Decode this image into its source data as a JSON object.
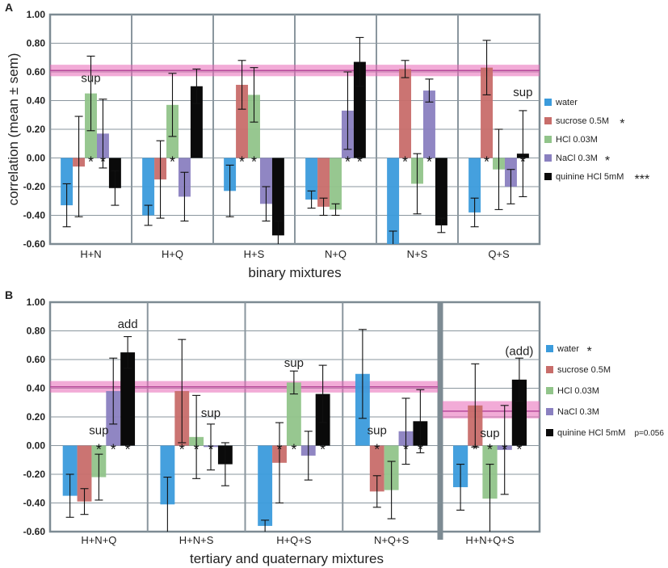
{
  "colors": {
    "water": "#3b9bdc",
    "sucrose": "#c86d6a",
    "hcl": "#91c48a",
    "nacl": "#8a80c0",
    "quinine": "#0a0a0a",
    "band": "#e766b6",
    "bandLine": "#b64a9a",
    "frame": "#7d8b93"
  },
  "chart_data": [
    {
      "panel": "A",
      "type": "bar",
      "ylabel": "correlation (mean ± sem)",
      "xlabel": "binary mixtures",
      "ylim": [
        -0.6,
        1.0
      ],
      "yticks": [
        "1.00",
        "0.80",
        "0.60",
        "0.40",
        "0.20",
        "0.00",
        "-0.20",
        "-0.40",
        "-0.60"
      ],
      "categories": [
        "H+N",
        "H+Q",
        "H+S",
        "N+Q",
        "N+S",
        "Q+S"
      ],
      "band": {
        "low": 0.57,
        "high": 0.65,
        "mean": 0.61
      },
      "series": [
        {
          "key": "water",
          "name": "water",
          "sig": "",
          "values": [
            -0.33,
            -0.4,
            -0.23,
            -0.29,
            -0.6,
            -0.38
          ],
          "err": [
            0.15,
            0.07,
            0.18,
            0.06,
            0.09,
            0.1
          ]
        },
        {
          "key": "sucrose",
          "name": "sucrose 0.5M",
          "sig": "*",
          "values": [
            -0.06,
            -0.15,
            0.51,
            -0.34,
            0.62,
            0.63
          ],
          "err": [
            0.35,
            0.27,
            0.17,
            0.06,
            0.06,
            0.19
          ]
        },
        {
          "key": "hcl",
          "name": "HCl 0.03M",
          "sig": "",
          "values": [
            0.45,
            0.37,
            0.44,
            -0.36,
            -0.18,
            -0.08
          ],
          "err": [
            0.26,
            0.22,
            0.19,
            0.04,
            0.21,
            0.28
          ]
        },
        {
          "key": "nacl",
          "name": "NaCl 0.3M",
          "sig": "*",
          "values": [
            0.17,
            -0.27,
            -0.32,
            0.33,
            0.47,
            -0.2
          ],
          "err": [
            0.24,
            0.17,
            0.12,
            0.27,
            0.08,
            0.12
          ]
        },
        {
          "key": "quinine",
          "name": "quinine HCl 5mM",
          "sig": "***",
          "values": [
            -0.21,
            0.5,
            -0.54,
            0.67,
            -0.47,
            0.03
          ],
          "err": [
            0.12,
            0.12,
            0.1,
            0.17,
            0.05,
            0.3
          ]
        }
      ],
      "stars": [
        [
          0,
          2
        ],
        [
          0,
          3
        ],
        [
          1,
          2
        ],
        [
          2,
          1
        ],
        [
          2,
          2
        ],
        [
          3,
          3
        ],
        [
          3,
          4
        ],
        [
          4,
          1
        ],
        [
          4,
          3
        ],
        [
          5,
          1
        ],
        [
          5,
          4
        ]
      ],
      "annotations": [
        {
          "text": "sup",
          "category": 0,
          "series": 2,
          "y": 0.53
        },
        {
          "text": "sup",
          "category": 5,
          "series": 4,
          "y": 0.43
        }
      ]
    },
    {
      "panel": "B",
      "type": "bar",
      "ylabel": "",
      "xlabel": "tertiary and quaternary mixtures",
      "ylim": [
        -0.6,
        1.0
      ],
      "yticks": [
        "1.00",
        "0.80",
        "0.60",
        "0.40",
        "0.20",
        "0.00",
        "-0.20",
        "-0.40",
        "-0.60"
      ],
      "categories": [
        "H+N+Q",
        "H+N+S",
        "H+Q+S",
        "N+Q+S",
        "H+N+Q+S"
      ],
      "band": {
        "low": 0.37,
        "high": 0.45,
        "mean": 0.41
      },
      "band2": {
        "low": 0.19,
        "high": 0.31,
        "mean": 0.24
      },
      "series": [
        {
          "key": "water",
          "name": "water",
          "sig": "*",
          "values": [
            -0.35,
            -0.41,
            -0.56,
            0.5,
            -0.29
          ],
          "err": [
            0.15,
            0.19,
            0.04,
            0.31,
            0.16
          ]
        },
        {
          "key": "sucrose",
          "name": "sucrose 0.5M",
          "sig": "",
          "values": [
            -0.39,
            0.38,
            -0.12,
            -0.32,
            0.28
          ],
          "err": [
            0.09,
            0.36,
            0.28,
            0.11,
            0.29
          ]
        },
        {
          "key": "hcl",
          "name": "HCl 0.03M",
          "sig": "",
          "values": [
            -0.22,
            0.06,
            0.44,
            -0.31,
            -0.37
          ],
          "err": [
            0.16,
            0.29,
            0.08,
            0.2,
            0.24
          ]
        },
        {
          "key": "nacl",
          "name": "NaCl 0.3M",
          "sig": "",
          "values": [
            0.38,
            -0.01,
            -0.07,
            0.1,
            -0.03
          ],
          "err": [
            0.23,
            0.16,
            0.17,
            0.23,
            0.31
          ]
        },
        {
          "key": "quinine",
          "name": "quinine HCl 5mM",
          "sig": "p=0.056",
          "values": [
            0.65,
            -0.13,
            0.36,
            0.17,
            0.46
          ],
          "err": [
            0.11,
            0.15,
            0.2,
            0.22,
            0.15
          ]
        }
      ],
      "stars": [
        [
          0,
          2
        ],
        [
          0,
          3
        ],
        [
          0,
          4
        ],
        [
          1,
          1
        ],
        [
          1,
          2
        ],
        [
          1,
          3
        ],
        [
          2,
          1
        ],
        [
          2,
          2
        ],
        [
          2,
          4
        ],
        [
          3,
          1
        ],
        [
          3,
          3
        ],
        [
          3,
          4
        ],
        [
          4,
          1
        ],
        [
          4,
          2
        ],
        [
          4,
          3
        ],
        [
          4,
          4
        ]
      ],
      "annotations": [
        {
          "text": "add",
          "category": 0,
          "series": 4,
          "y": 0.82
        },
        {
          "text": "sup",
          "category": 0,
          "series": 2,
          "y": 0.08
        },
        {
          "text": "sup",
          "category": 1,
          "series": 3,
          "y": 0.2
        },
        {
          "text": "sup",
          "category": 2,
          "series": 2,
          "y": 0.55
        },
        {
          "text": "sup",
          "category": 3,
          "series": 1,
          "y": 0.08
        },
        {
          "text": "sup",
          "category": 4,
          "series": 2,
          "y": 0.06
        },
        {
          "text": "(add)",
          "category": 4,
          "series": 4,
          "y": 0.63
        }
      ]
    }
  ]
}
